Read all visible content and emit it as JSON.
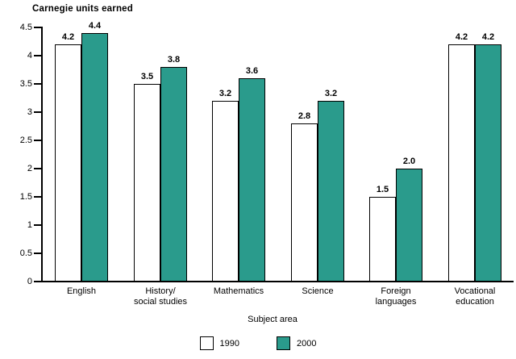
{
  "figure": {
    "background": "#ffffff",
    "text_color": "#000000"
  },
  "chart_data": {
    "type": "bar",
    "title": "Carnegie units earned",
    "ylabel": "Carnegie units earned",
    "xlabel": "Subject area",
    "categories": [
      "English",
      "History/\nsocial studies",
      "Mathematics",
      "Science",
      "Foreign\nlanguages",
      "Vocational\neducation"
    ],
    "series": [
      {
        "name": "1990",
        "color": "#ffffff",
        "values": [
          4.2,
          3.5,
          3.2,
          2.8,
          1.5,
          4.2
        ],
        "labels": [
          "4.2",
          "3.5",
          "3.2",
          "2.8",
          "1.5",
          "4.2"
        ]
      },
      {
        "name": "2000",
        "color": "#2a9b8c",
        "values": [
          4.4,
          3.8,
          3.6,
          3.2,
          2.0,
          4.2
        ],
        "labels": [
          "4.4",
          "3.8",
          "3.6",
          "3.2",
          "2.0",
          "4.2"
        ]
      }
    ],
    "ylim": [
      0,
      4.5
    ],
    "ytick_step": 0.5,
    "yticks": [
      "0",
      "0.5",
      "1",
      "1.5",
      "2",
      "2.5",
      "3",
      "3.5",
      "4",
      "4.5"
    ],
    "grid": false,
    "bar_border_color": "#000000",
    "legend_position": "bottom-center"
  }
}
